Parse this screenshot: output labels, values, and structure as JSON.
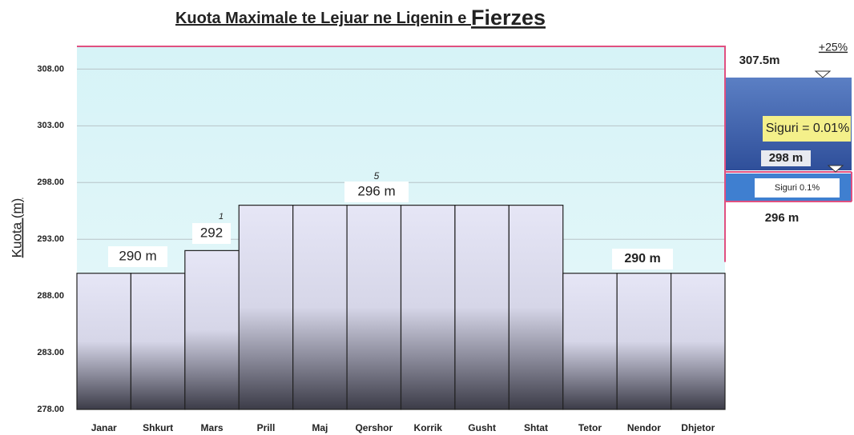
{
  "chart_data": {
    "type": "bar",
    "title_parts": [
      "Kuota Maximale te Lejuar ne Liqenin e ",
      "Fierzes"
    ],
    "y_label": "Kuota (m)",
    "categories": [
      "Janar",
      "Shkurt",
      "Mars",
      "Prill",
      "Maj",
      "Qershor",
      "Korrik",
      "Gusht",
      "Shtat",
      "Tetor",
      "Nendor",
      "Dhjetor"
    ],
    "values": [
      290,
      290,
      292,
      296,
      296,
      296,
      296,
      296,
      296,
      290,
      290,
      290
    ],
    "ylim": [
      278,
      310
    ],
    "yticks": [
      {
        "value": 278,
        "label": "278.00"
      },
      {
        "value": 283,
        "label": "283.00"
      },
      {
        "value": 288,
        "label": "288.00"
      },
      {
        "value": 293,
        "label": "293.00"
      },
      {
        "value": 298,
        "label": "298.00"
      },
      {
        "value": 303,
        "label": "303.00"
      },
      {
        "value": 308,
        "label": "308.00"
      }
    ],
    "grid": true,
    "annotations": [
      "290 m",
      "292",
      "296 m",
      "290 m",
      "1",
      "5"
    ],
    "side_panel": [
      "307.5m",
      "+25%",
      "Siguri = 0.01%",
      "298 m",
      "Siguri 0.1%",
      "296 m"
    ]
  }
}
